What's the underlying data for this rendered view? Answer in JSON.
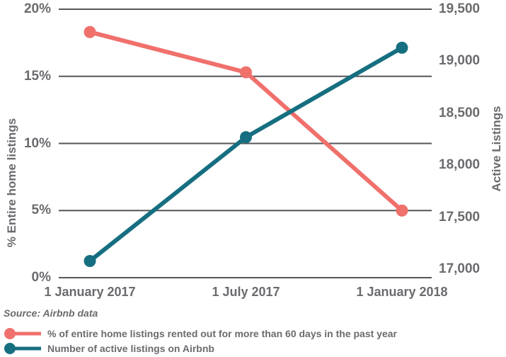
{
  "source_note": "Source: Airbnb data",
  "colors": {
    "background": "#FFFFFF",
    "grid": "#55565A",
    "text": "#6A6B6E",
    "series_pink": "#F0706C",
    "series_teal": "#166F80"
  },
  "chart_data": {
    "type": "line",
    "title": "",
    "x_categories": [
      "1 January 2017",
      "1 July 2017",
      "1 January 2018"
    ],
    "left_axis": {
      "title": "% Entire home listings",
      "tick_labels": [
        "20%",
        "15%",
        "10%",
        "5%",
        "0%"
      ],
      "tick_values": [
        20,
        15,
        10,
        5,
        0
      ],
      "range": [
        0,
        20
      ]
    },
    "right_axis": {
      "title": "Active Listings",
      "tick_labels": [
        "19,500",
        "19,000",
        "18,500",
        "18,000",
        "17,500",
        "17,000"
      ],
      "tick_values": [
        19500,
        19000,
        18500,
        18000,
        17500,
        17000
      ],
      "range": [
        16920,
        19500
      ]
    },
    "grid": true,
    "gridline_color": "#55565A",
    "legend_position": "bottom-left",
    "series": [
      {
        "name": "% of entire home listings rented out for more than 60 days in the past year",
        "axis": "left",
        "color": "#F0706C",
        "unit": "%",
        "values": [
          18.3,
          15.3,
          5.0
        ]
      },
      {
        "name": "Number of active listings on Airbnb",
        "axis": "right",
        "color": "#166F80",
        "unit": "listings",
        "values": [
          17080,
          18270,
          19130
        ]
      }
    ]
  }
}
